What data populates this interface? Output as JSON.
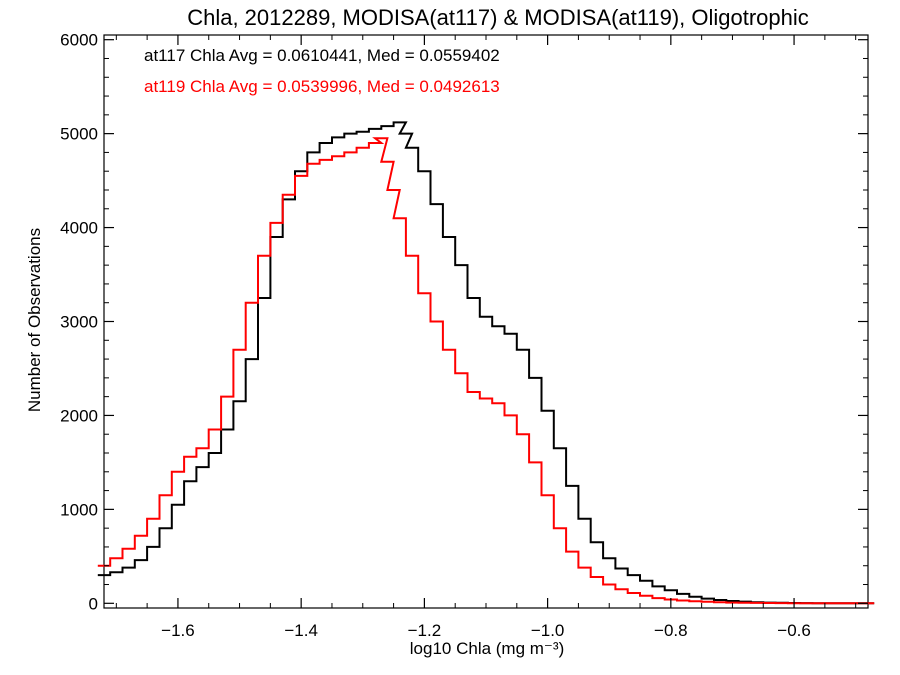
{
  "chart_data": {
    "type": "line",
    "title": "Chla, 2012289, MODISA(at117) & MODISA(at119), Oligotrophic",
    "xlabel": "log10 Chla (mg m⁻³)",
    "ylabel": "Number of Observations",
    "xlim": [
      -1.72,
      -0.48
    ],
    "ylim": [
      -50,
      6050
    ],
    "xticks": [
      -1.6,
      -1.4,
      -1.2,
      -1.0,
      -0.8,
      -0.6
    ],
    "xtick_labels": [
      "−1.6",
      "−1.4",
      "−1.2",
      "−1.0",
      "−0.8",
      "−0.6"
    ],
    "yticks": [
      0,
      1000,
      2000,
      3000,
      4000,
      5000,
      6000
    ],
    "ytick_labels": [
      "0",
      "1000",
      "2000",
      "3000",
      "4000",
      "5000",
      "6000"
    ],
    "grid": false,
    "legend_position": "top-left",
    "annotations": [
      {
        "text": "at117 Chla Avg = 0.0610441, Med = 0.0559402",
        "color": "#000000"
      },
      {
        "text": "at119 Chla Avg = 0.0539996, Med = 0.0492613",
        "color": "#ff0000"
      }
    ],
    "series": [
      {
        "color": "#000000",
        "x": [
          -1.72,
          -1.7,
          -1.68,
          -1.66,
          -1.64,
          -1.62,
          -1.6,
          -1.58,
          -1.56,
          -1.54,
          -1.52,
          -1.5,
          -1.48,
          -1.46,
          -1.44,
          -1.42,
          -1.4,
          -1.38,
          -1.36,
          -1.34,
          -1.32,
          -1.3,
          -1.28,
          -1.26,
          -1.24,
          -1.23,
          -1.22,
          -1.2,
          -1.18,
          -1.16,
          -1.14,
          -1.12,
          -1.1,
          -1.08,
          -1.06,
          -1.04,
          -1.02,
          -1.0,
          -0.98,
          -0.96,
          -0.94,
          -0.92,
          -0.9,
          -0.88,
          -0.86,
          -0.84,
          -0.82,
          -0.8,
          -0.78,
          -0.76,
          -0.74,
          -0.72,
          -0.7,
          -0.68,
          -0.66,
          -0.64,
          -0.62,
          -0.6,
          -0.58,
          -0.56,
          -0.54,
          -0.52,
          -0.5,
          -0.48
        ],
        "y": [
          300,
          330,
          380,
          460,
          600,
          800,
          1050,
          1300,
          1450,
          1600,
          1850,
          2150,
          2600,
          3250,
          3900,
          4300,
          4600,
          4800,
          4900,
          4960,
          5000,
          5020,
          5050,
          5080,
          5120,
          5000,
          4850,
          4600,
          4250,
          3900,
          3600,
          3250,
          3050,
          2950,
          2870,
          2700,
          2400,
          2050,
          1650,
          1250,
          900,
          650,
          480,
          370,
          300,
          240,
          180,
          140,
          100,
          70,
          50,
          35,
          25,
          18,
          12,
          8,
          5,
          3,
          2,
          1,
          1,
          0,
          0,
          0
        ]
      },
      {
        "color": "#ff0000",
        "x": [
          -1.72,
          -1.7,
          -1.68,
          -1.66,
          -1.64,
          -1.62,
          -1.6,
          -1.58,
          -1.56,
          -1.54,
          -1.52,
          -1.5,
          -1.48,
          -1.46,
          -1.44,
          -1.42,
          -1.4,
          -1.38,
          -1.36,
          -1.34,
          -1.32,
          -1.3,
          -1.28,
          -1.27,
          -1.26,
          -1.25,
          -1.24,
          -1.22,
          -1.2,
          -1.18,
          -1.16,
          -1.14,
          -1.12,
          -1.1,
          -1.08,
          -1.06,
          -1.04,
          -1.02,
          -1.0,
          -0.98,
          -0.96,
          -0.94,
          -0.92,
          -0.9,
          -0.88,
          -0.86,
          -0.84,
          -0.82,
          -0.8,
          -0.78,
          -0.76,
          -0.74,
          -0.72,
          -0.7,
          -0.68,
          -0.66,
          -0.64,
          -0.62,
          -0.6,
          -0.58,
          -0.56,
          -0.54,
          -0.52,
          -0.5,
          -0.48
        ],
        "y": [
          400,
          480,
          580,
          720,
          900,
          1150,
          1400,
          1560,
          1650,
          1850,
          2200,
          2700,
          3200,
          3700,
          4050,
          4350,
          4550,
          4680,
          4720,
          4760,
          4800,
          4850,
          4900,
          4950,
          4700,
          4400,
          4100,
          3700,
          3300,
          3000,
          2700,
          2450,
          2250,
          2180,
          2130,
          2000,
          1800,
          1500,
          1150,
          800,
          550,
          380,
          280,
          200,
          150,
          110,
          80,
          55,
          40,
          30,
          22,
          16,
          12,
          8,
          5,
          4,
          3,
          2,
          1,
          1,
          0,
          0,
          0,
          0,
          0
        ]
      }
    ]
  }
}
